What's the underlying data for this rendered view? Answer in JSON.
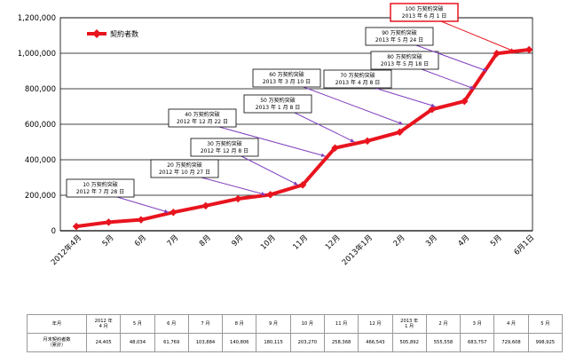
{
  "chart_data": {
    "type": "line",
    "legend": {
      "label": "契約者数",
      "position": "top-left"
    },
    "y_ticks": [
      "0",
      "200,000",
      "400,000",
      "600,000",
      "800,000",
      "1,000,000",
      "1,200,000"
    ],
    "ylim": [
      0,
      1200000
    ],
    "grid": true,
    "x_labels": [
      "2012年4月",
      "5月",
      "6月",
      "7月",
      "8月",
      "9月",
      "10月",
      "11月",
      "12月",
      "2013年1月",
      "2月",
      "3月",
      "4月",
      "5月",
      "6月1日"
    ],
    "values": [
      24405,
      48034,
      61769,
      103884,
      140806,
      180115,
      203270,
      258368,
      466543,
      505892,
      555558,
      683757,
      729608,
      998925,
      1020000
    ],
    "line_color": "#e8141e",
    "callout_border_color": "#e8141e",
    "arrow_color": "#7f3fbf",
    "annotations": [
      {
        "line1": "10 万契約突破",
        "line2": "2012 年 7 月 28 日",
        "target_x": 2.85,
        "target_y": 103884
      },
      {
        "line1": "20 万契約突破",
        "line2": "2012 年 10 月 27 日",
        "target_x": 5.85,
        "target_y": 203270
      },
      {
        "line1": "30 万契約突破",
        "line2": "2012 年 12 月 8 日",
        "target_x": 6.85,
        "target_y": 258368
      },
      {
        "line1": "40 万契約突破",
        "line2": "2012 年 12 月 22 日",
        "target_x": 7.7,
        "target_y": 420000
      },
      {
        "line1": "50 万契約突破",
        "line2": "2013 年 1 月 8 日",
        "target_x": 8.6,
        "target_y": 500000
      },
      {
        "line1": "60 万契約突破",
        "line2": "2013 年 3 月 10 日",
        "target_x": 10.1,
        "target_y": 600000
      },
      {
        "line1": "70 万契約突破",
        "line2": "2013 年 4 月 8 日",
        "target_x": 11.1,
        "target_y": 700000
      },
      {
        "line1": "80 万契約突破",
        "line2": "2013 年 5 月 18 日",
        "target_x": 12.3,
        "target_y": 800000
      },
      {
        "line1": "90 万契約突破",
        "line2": "2013 年 5 月 24 日",
        "target_x": 12.7,
        "target_y": 900000
      },
      {
        "line1": "100 万契約突破",
        "line2": "2013 年 6 月 1 日",
        "target_x": 13.55,
        "target_y": 1010000
      }
    ]
  },
  "table": {
    "header_label": "年月",
    "row_label": "月末契約者数\n（累計）",
    "months": [
      "2012 年\n4 月",
      "5 月",
      "6 月",
      "7 月",
      "8 月",
      "9 月",
      "10 月",
      "11 月",
      "12 月",
      "2013 年\n1 月",
      "2 月",
      "3 月",
      "4 月",
      "5 月"
    ],
    "values": [
      "24,405",
      "48,034",
      "61,769",
      "103,884",
      "140,806",
      "180,115",
      "203,270",
      "258,368",
      "466,543",
      "505,892",
      "555,558",
      "683,757",
      "729,608",
      "998,925"
    ]
  }
}
